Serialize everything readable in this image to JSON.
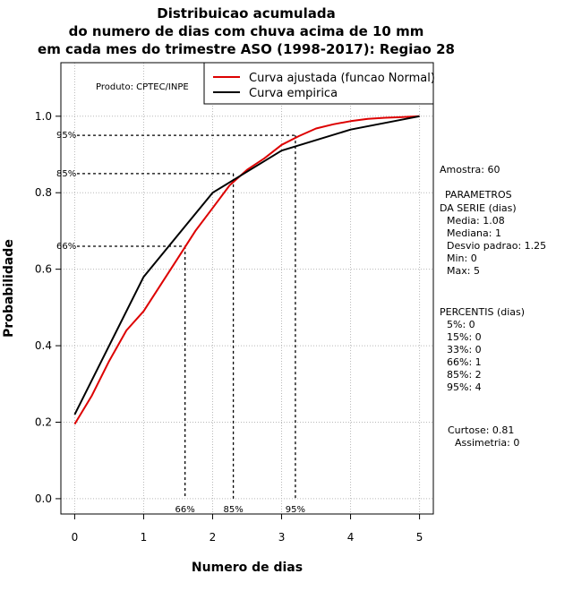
{
  "chart_data": {
    "type": "line",
    "title_lines": [
      "Distribuicao acumulada",
      "do numero de dias com chuva acima de 10 mm",
      "em cada mes do trimestre ASO (1998-2017): Regiao 28"
    ],
    "xlabel": "Numero de dias",
    "ylabel": "Probabilidade",
    "xlim": [
      -0.2,
      5.2
    ],
    "ylim": [
      -0.04,
      1.14
    ],
    "xticks": [
      0,
      1,
      2,
      3,
      4,
      5
    ],
    "yticks": [
      "0.0",
      "0.2",
      "0.4",
      "0.6",
      "0.8",
      "1.0"
    ],
    "grid": true,
    "producer": "Produto: CPTEC/INPE",
    "series": [
      {
        "name": "Curva ajustada (funcao Normal)",
        "color": "#dd0000",
        "x": [
          0,
          0.25,
          0.5,
          0.75,
          1,
          1.25,
          1.5,
          1.75,
          2,
          2.25,
          2.5,
          2.75,
          3,
          3.25,
          3.5,
          3.75,
          4,
          4.25,
          4.5,
          4.75,
          5
        ],
        "y": [
          0.195,
          0.27,
          0.36,
          0.44,
          0.49,
          0.56,
          0.63,
          0.7,
          0.76,
          0.82,
          0.86,
          0.89,
          0.925,
          0.948,
          0.968,
          0.979,
          0.987,
          0.993,
          0.996,
          0.998,
          1.0
        ]
      },
      {
        "name": "Curva empirica",
        "color": "#000000",
        "x": [
          0,
          1,
          2,
          3,
          4,
          5
        ],
        "y": [
          0.22,
          0.58,
          0.8,
          0.91,
          0.965,
          1.0
        ]
      }
    ],
    "percentile_guides": [
      {
        "label": "66%",
        "x": 1.6,
        "y": 0.66
      },
      {
        "label": "85%",
        "x": 2.3,
        "y": 0.85
      },
      {
        "label": "95%",
        "x": 3.2,
        "y": 0.95
      }
    ]
  },
  "stats": {
    "sample": "Amostra: 60",
    "params_title_1": "PARAMETROS",
    "params_title_2": "DA SERIE (dias)",
    "params": [
      "Media: 1.08",
      "Mediana: 1",
      "Desvio padrao: 1.25",
      "Min: 0",
      "Max: 5"
    ],
    "percentis_title": "PERCENTIS (dias)",
    "percentis": [
      "5%: 0",
      "15%: 0",
      "33%: 0",
      "66%: 1",
      "85%: 2",
      "95%: 4"
    ],
    "curtose": "Curtose: 0.81",
    "assimetria": "Assimetria: 0"
  }
}
